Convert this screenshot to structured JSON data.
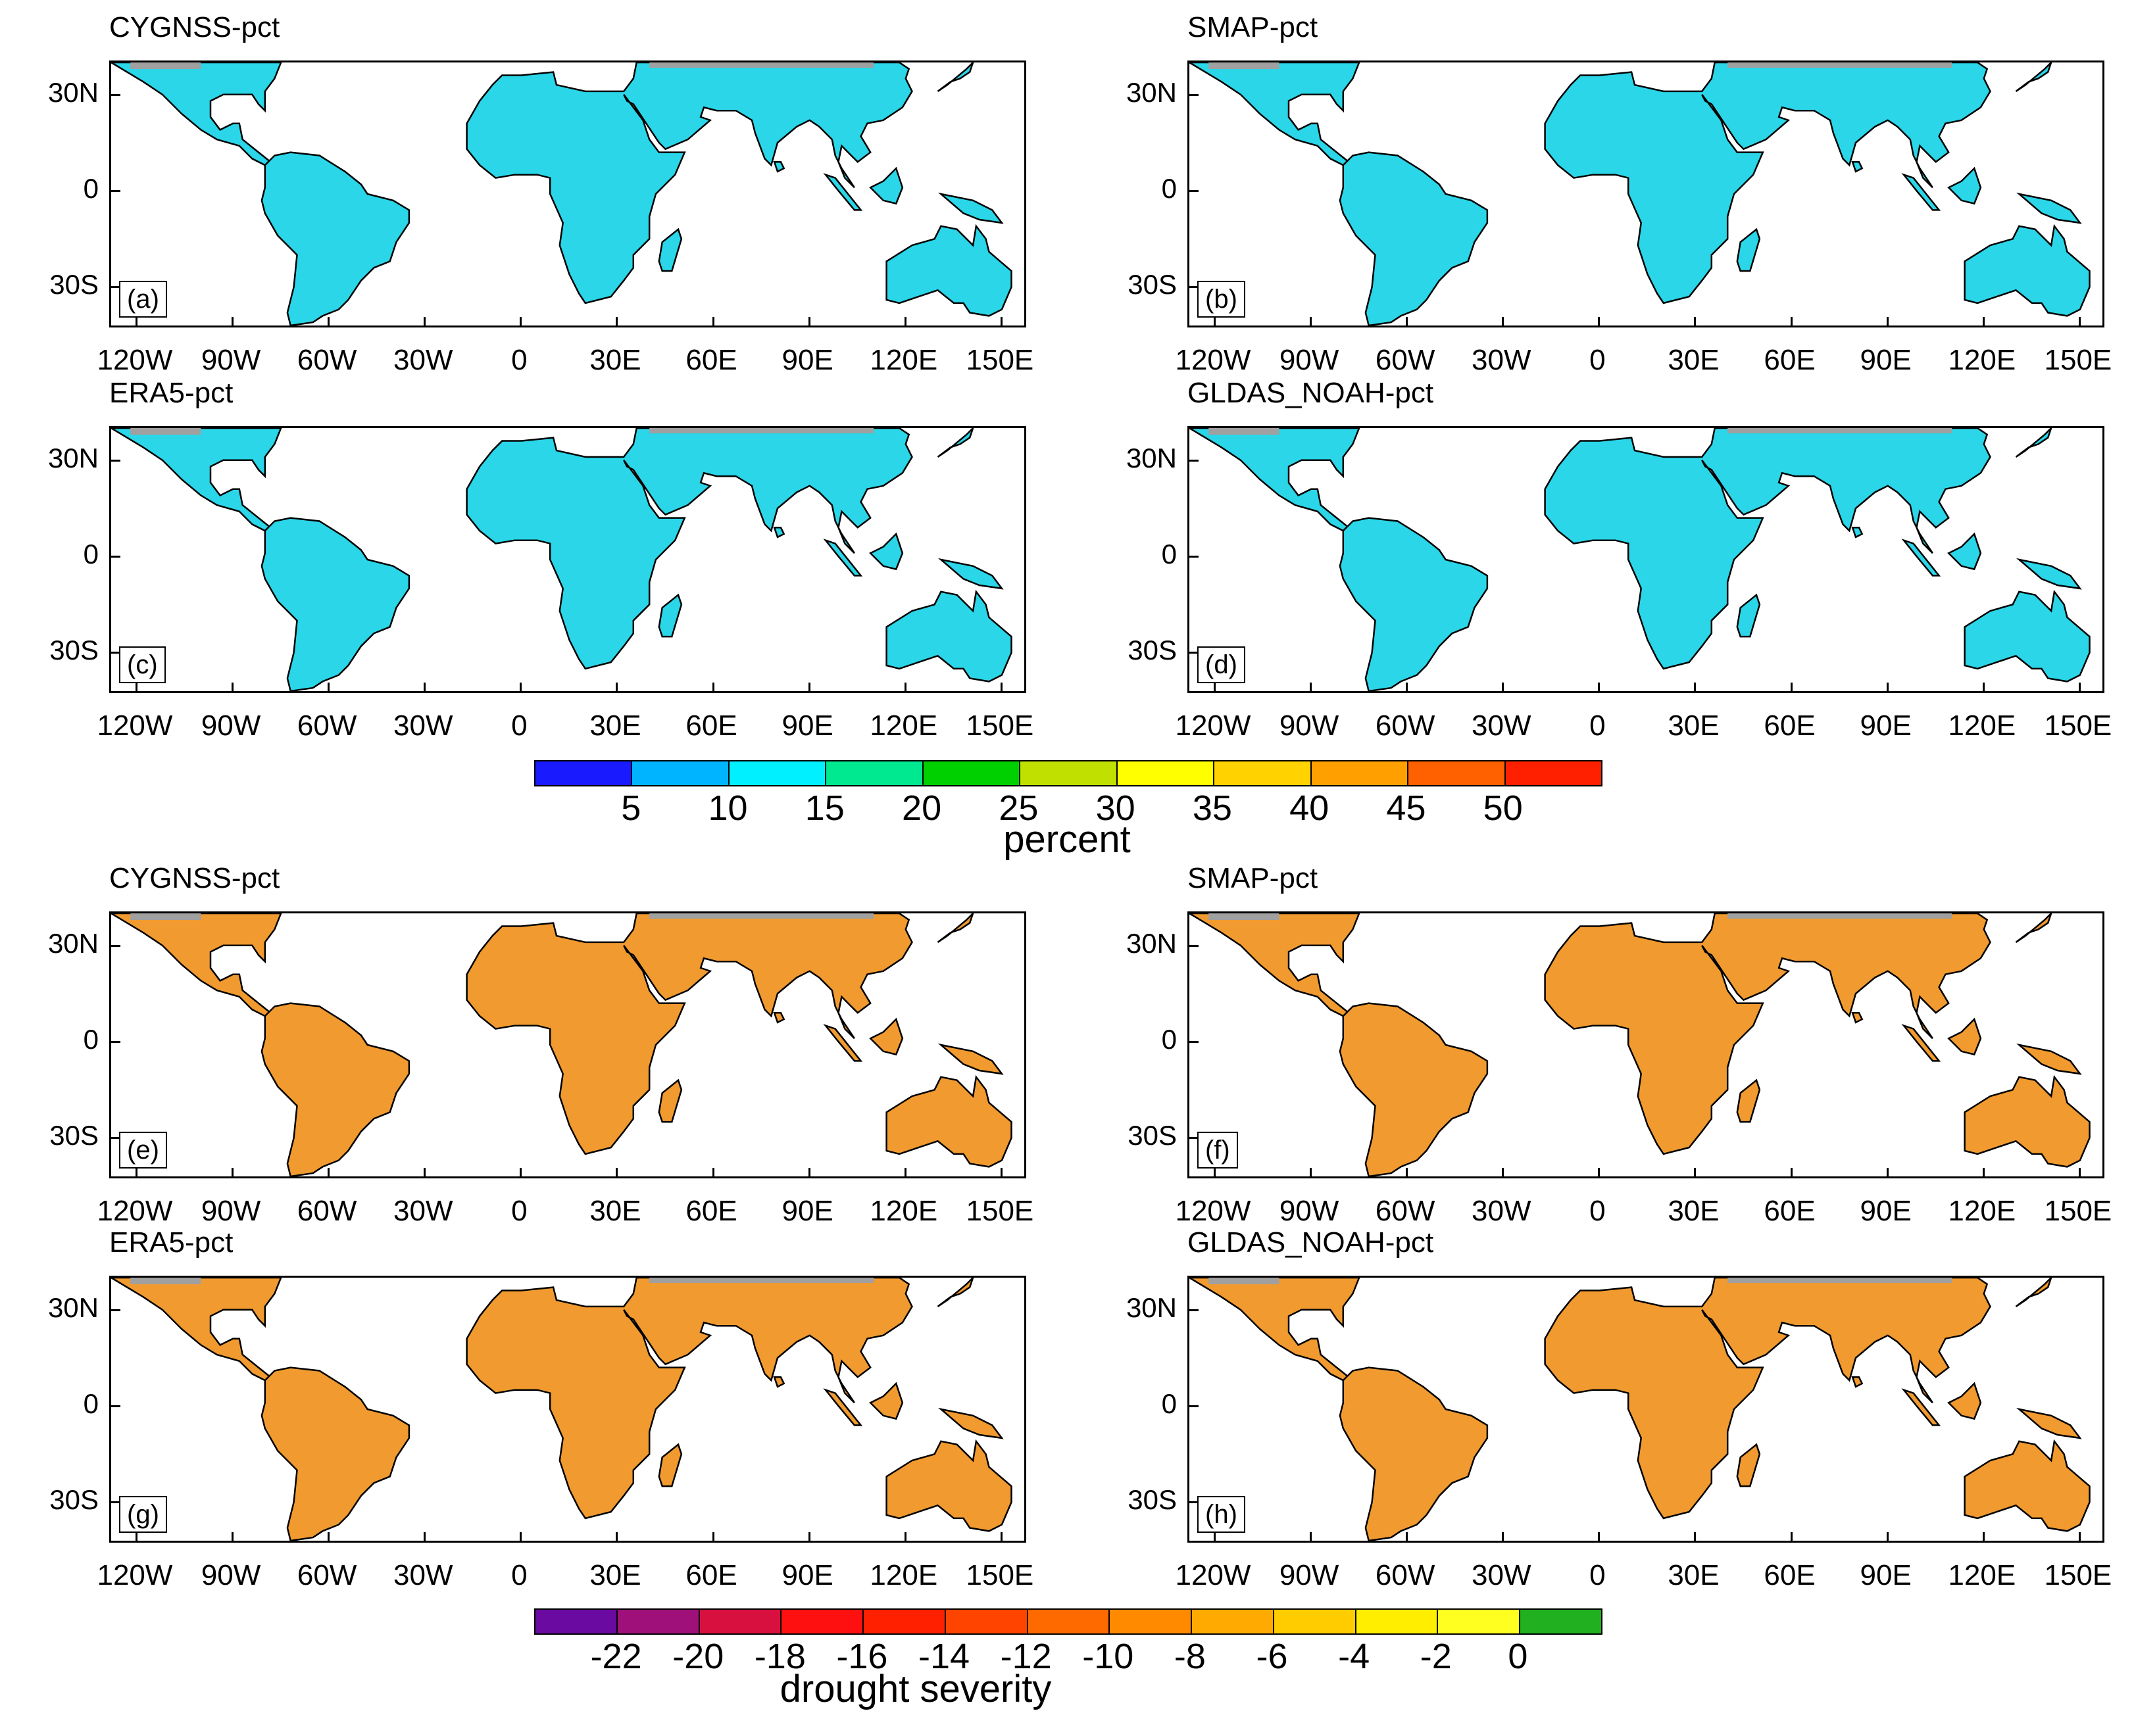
{
  "panels_pct": [
    {
      "title": "CYGNSS-pct",
      "label": "(a)",
      "lon_labels": [
        "120W",
        "90W",
        "60W",
        "30W",
        "0",
        "30E",
        "60E",
        "90E",
        "120E",
        "150E"
      ]
    },
    {
      "title": "SMAP-pct",
      "label": "(b)",
      "lon_labels": [
        "120W",
        "90W",
        "60W",
        "30W",
        "0",
        "30E",
        "60E",
        "90E",
        "120E",
        "150E"
      ]
    },
    {
      "title": "ERA5-pct",
      "label": "(c)",
      "lon_labels": [
        "120W",
        "90W",
        "60W",
        "30W",
        "0",
        "30E",
        "60E",
        "90E",
        "120E",
        "150E"
      ]
    },
    {
      "title": "GLDAS_NOAH-pct",
      "label": "(d)",
      "lon_labels": [
        "120W",
        "90W",
        "60W",
        "30W",
        "0",
        "30E",
        "60E",
        "90E",
        "120E",
        "150E"
      ]
    }
  ],
  "panels_severity": [
    {
      "title": "CYGNSS-pct",
      "label": "(e)",
      "lon_labels": [
        "120W",
        "90W",
        "60W",
        "30W",
        "0",
        "30E",
        "60E",
        "90E",
        "120E",
        "150E"
      ]
    },
    {
      "title": "SMAP-pct",
      "label": "(f)",
      "lon_labels": [
        "120W",
        "90W",
        "60W",
        "30W",
        "0",
        "30E",
        "60E",
        "90E",
        "120E",
        "150E"
      ]
    },
    {
      "title": "ERA5-pct",
      "label": "(g)",
      "lon_labels": [
        "120W",
        "90W",
        "60W",
        "30W",
        "0",
        "30E",
        "60E",
        "90E",
        "120E",
        "150E"
      ]
    },
    {
      "title": "GLDAS_NOAH-pct",
      "label": "(h)",
      "lon_labels": [
        "120W",
        "90W",
        "60W",
        "30W",
        "0",
        "30E",
        "60E",
        "90E",
        "120E",
        "150E"
      ]
    }
  ],
  "lat_labels": [
    "30N",
    "0",
    "30S"
  ],
  "colorbar_pct": {
    "title": "percent",
    "tick_labels": [
      "5",
      "10",
      "15",
      "20",
      "25",
      "30",
      "35",
      "40",
      "45",
      "50"
    ],
    "colors": [
      "#1a1aff",
      "#00b4ff",
      "#00f0ff",
      "#00e890",
      "#00d000",
      "#c0e000",
      "#ffff00",
      "#ffd200",
      "#ffa000",
      "#ff6000",
      "#ff2000"
    ]
  },
  "colorbar_severity": {
    "title": "drought severity",
    "tick_labels": [
      "-22",
      "-20",
      "-18",
      "-16",
      "-14",
      "-12",
      "-10",
      "-8",
      "-6",
      "-4",
      "-2",
      "0"
    ],
    "colors": [
      "#6a0aa0",
      "#a0107a",
      "#d81040",
      "#ff1010",
      "#ff2000",
      "#ff4400",
      "#ff6a00",
      "#ff8a00",
      "#ffaa00",
      "#ffcc00",
      "#ffee00",
      "#ffff20",
      "#20b020"
    ]
  },
  "map_fills": {
    "land_pct": "#2ad6e8",
    "land_severity": "#f09a30",
    "missing": "#a0a0a0"
  }
}
